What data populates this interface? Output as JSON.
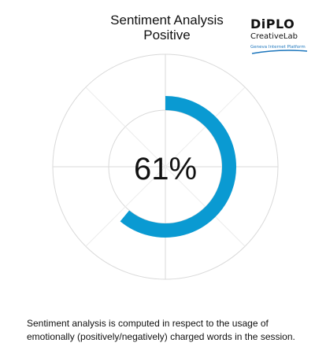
{
  "title": "Sentiment Analysis",
  "subtitle": "Positive",
  "logo": {
    "wordmark": "DiPLO",
    "sub": "CreativeLab",
    "tagline": "Geneva Internet Platform",
    "accent_color": "#1b75bc"
  },
  "chart_data": {
    "type": "radial_progress",
    "value": 61,
    "max": 100,
    "value_label": "61%",
    "bar_color": "#0a9ad2",
    "grid": true
  },
  "footnote": "Sentiment analysis is computed in respect to the usage of emotionally (positively/negatively) charged words in the session."
}
